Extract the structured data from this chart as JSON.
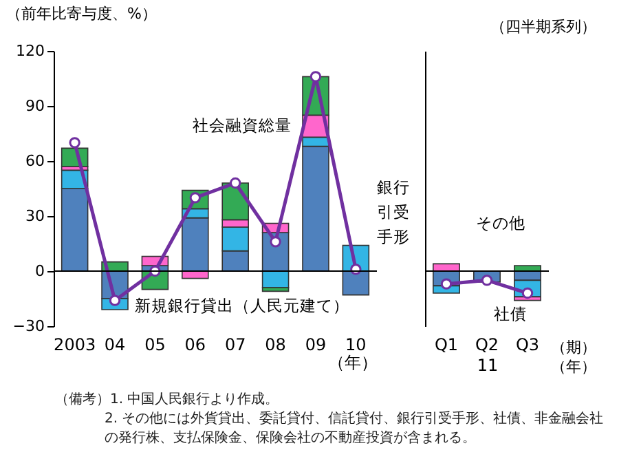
{
  "chart_data": [
    {
      "type": "bar",
      "stacked": true,
      "ylabel": "（前年比寄与度、%）",
      "xlabel": "（年）",
      "categories": [
        "2003",
        "04",
        "05",
        "06",
        "07",
        "08",
        "09",
        "10"
      ],
      "ylim": [
        -30,
        120
      ],
      "yticks": [
        -30,
        0,
        30,
        60,
        90,
        120
      ],
      "grid": false,
      "legend": false,
      "ref_lines": [
        {
          "axis": "y",
          "value": 0
        }
      ],
      "series": [
        {
          "name": "新規銀行貸出（人民元建て）",
          "color": "#4f81bd",
          "values": [
            45,
            -15,
            3,
            29,
            11,
            21,
            68,
            -13
          ]
        },
        {
          "name": "銀行引受手形",
          "color": "#33b5e5",
          "values": [
            10,
            -6,
            null,
            5,
            13,
            -9,
            5,
            14
          ]
        },
        {
          "color": "#ff66cc",
          "values": [
            2,
            null,
            5,
            -4,
            4,
            5,
            12,
            null
          ]
        },
        {
          "color": "#33aa55",
          "values": [
            10,
            5,
            -10,
            10,
            20,
            -2,
            21,
            null
          ]
        },
        {
          "name": "社会融資総量",
          "type": "line",
          "color": "#7030a0",
          "marker": "circle",
          "values": [
            70,
            -16,
            0,
            40,
            48,
            16,
            106,
            1
          ]
        }
      ],
      "annotations": [
        "（備考）1. 中国人民銀行より作成。",
        "2. その他には外貨貸出、委託貸付、信託貸付、銀行引受手形、社債、非金融会社の発行株、支払保険金、保険会社の不動産投資が含まれる。"
      ]
    },
    {
      "type": "bar",
      "stacked": true,
      "title": "（四半期系列）",
      "xlabel": "11",
      "categories": [
        "Q1",
        "Q2",
        "Q3"
      ],
      "ylim": [
        -30,
        120
      ],
      "tick_labels": "x",
      "ref_lines": [
        {
          "axis": "y",
          "value": 0
        }
      ],
      "grid": false,
      "legend": false,
      "series": [
        {
          "color": "#4f81bd",
          "values": [
            -8,
            -6,
            -5
          ]
        },
        {
          "color": "#33b5e5",
          "values": [
            -4,
            null,
            -9
          ]
        },
        {
          "name": "社債",
          "color": "#ff66cc",
          "values": [
            4,
            null,
            -2
          ]
        },
        {
          "name": "その他",
          "color": "#33aa55",
          "values": [
            null,
            null,
            3
          ]
        },
        {
          "type": "line",
          "color": "#7030a0",
          "marker": "circle",
          "values": [
            -7,
            -5,
            -12
          ]
        }
      ],
      "annotations": [
        "（期）",
        "（年）"
      ]
    }
  ]
}
